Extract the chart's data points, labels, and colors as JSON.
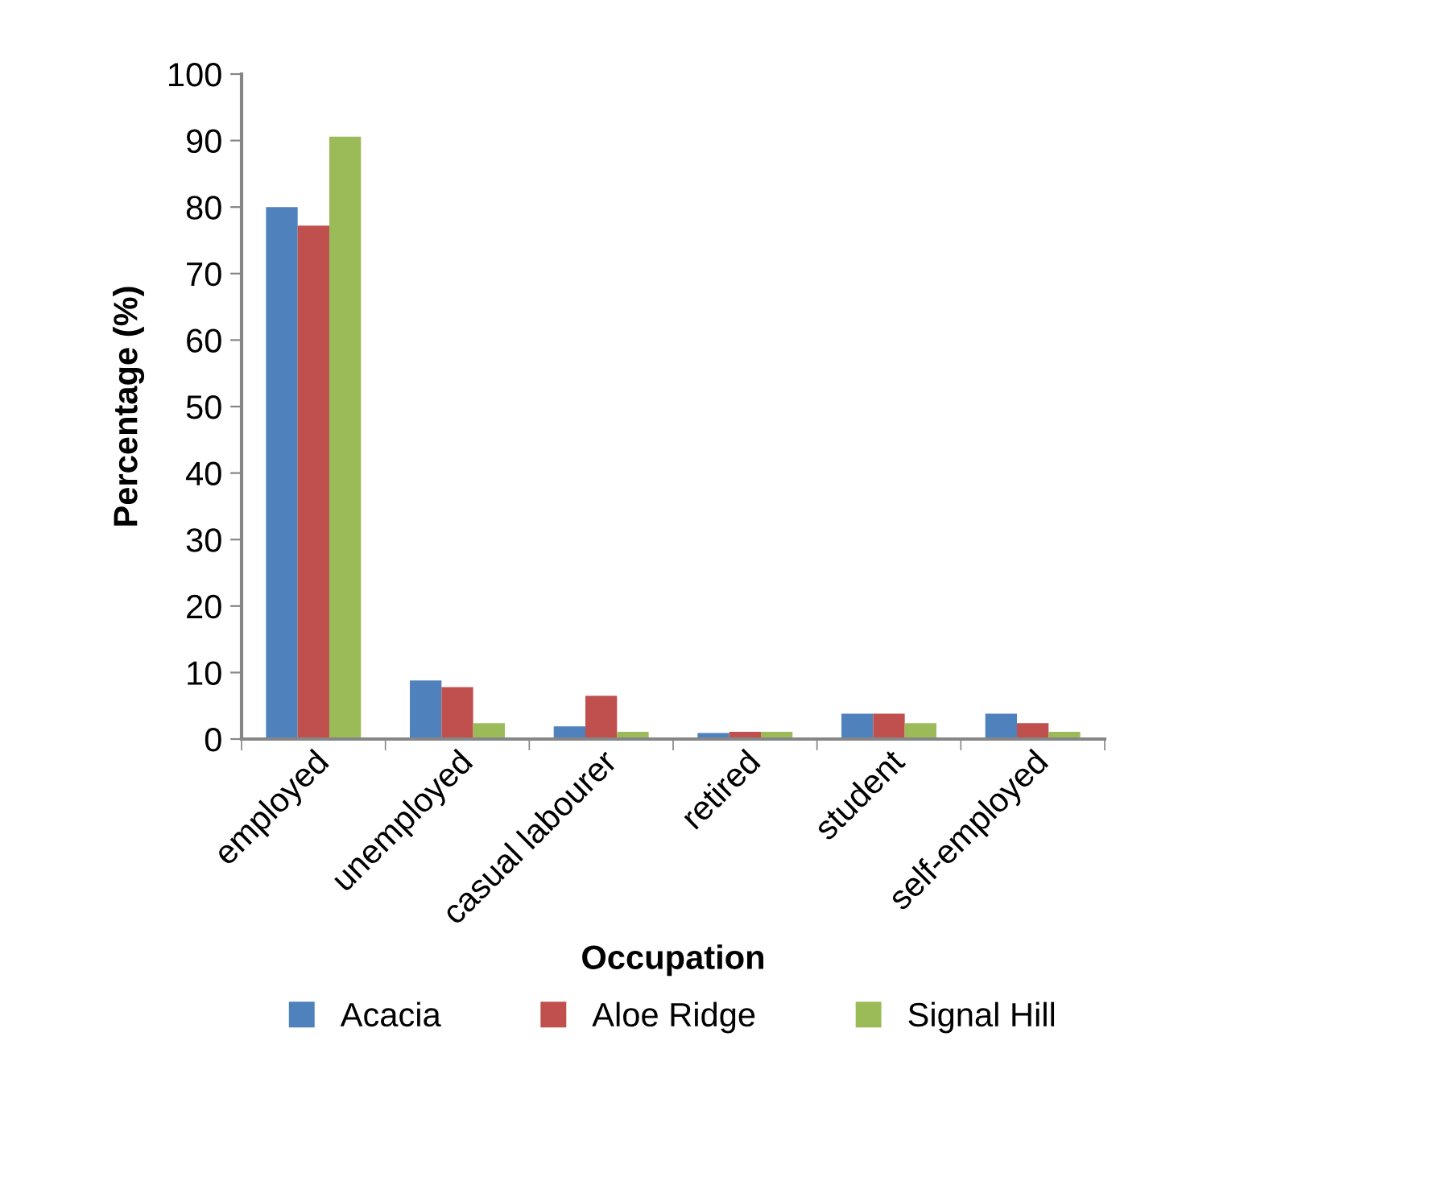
{
  "chart_data": {
    "type": "bar",
    "xlabel": "Occupation",
    "ylabel": "Percentage (%)",
    "categories": [
      "employed",
      "unemployed",
      "casual labourer",
      "retired",
      "student",
      "self-employed"
    ],
    "series": [
      {
        "name": "Acacia",
        "color": "#4f81bd",
        "values": [
          80,
          8.8,
          1.9,
          0.9,
          3.8,
          3.8
        ]
      },
      {
        "name": "Aloe Ridge",
        "color": "#c0504d",
        "values": [
          77.2,
          7.8,
          6.5,
          1.1,
          3.8,
          2.4
        ]
      },
      {
        "name": "Signal Hill",
        "color": "#9bbb59",
        "values": [
          90.6,
          2.4,
          1.1,
          1.1,
          2.4,
          1.1
        ]
      }
    ],
    "ylim": [
      0,
      100
    ],
    "yticks": [
      0,
      10,
      20,
      30,
      40,
      50,
      60,
      70,
      80,
      90,
      100
    ],
    "grid": false,
    "legend": "bottom"
  }
}
